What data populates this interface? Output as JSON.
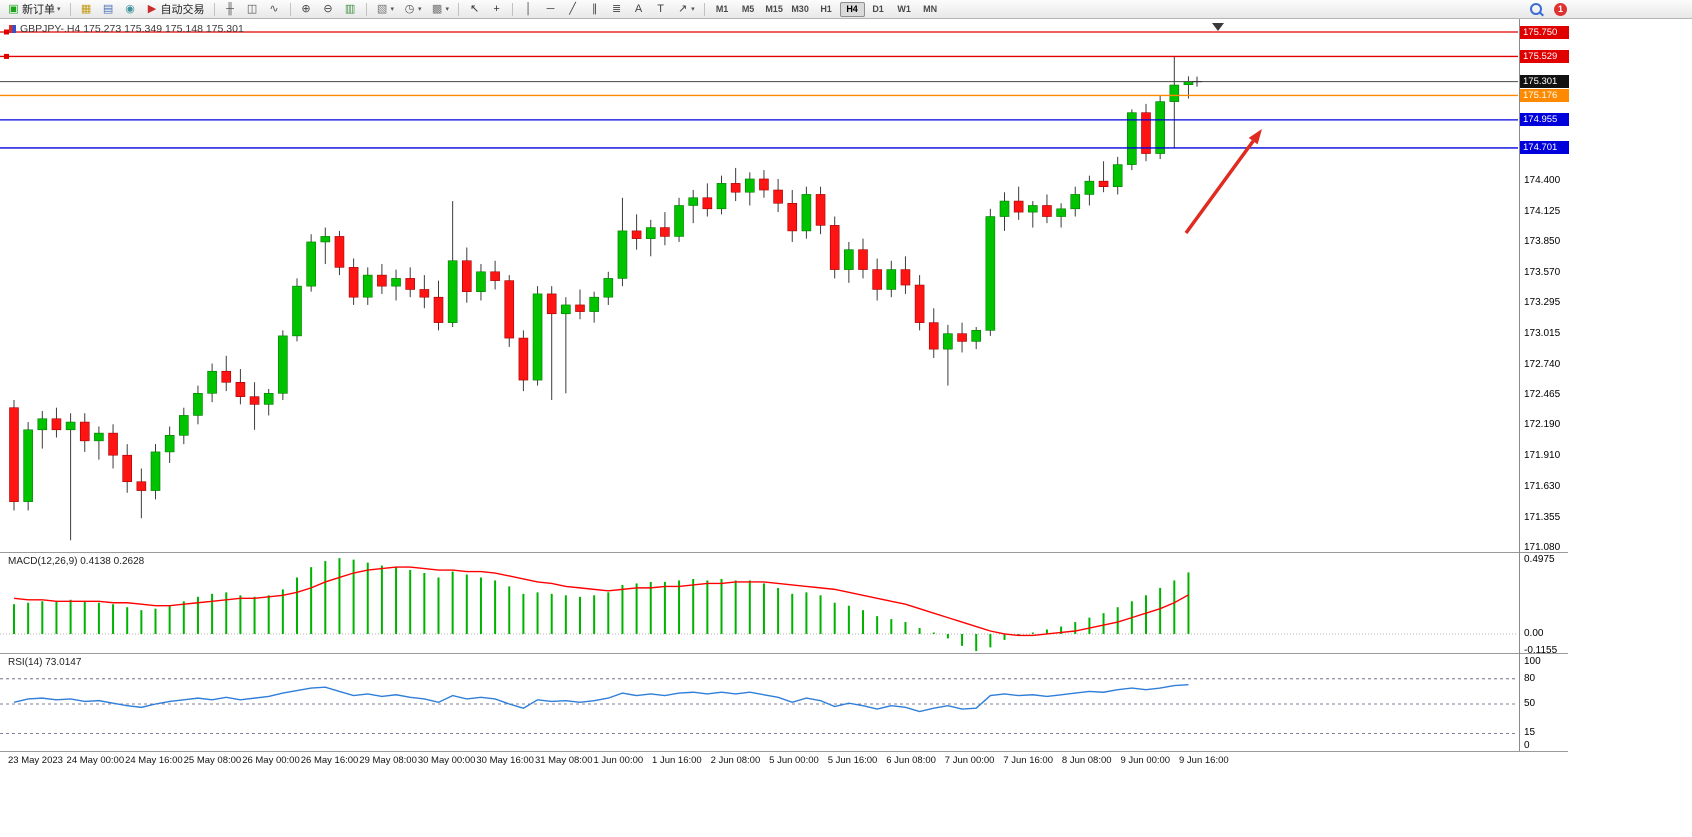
{
  "toolbar": {
    "new_order": "新订单",
    "autotrading": "自动交易",
    "timeframes": [
      "M1",
      "M5",
      "M15",
      "M30",
      "H1",
      "H4",
      "D1",
      "W1",
      "MN"
    ],
    "active_timeframe": "H4",
    "notification_count": "1"
  },
  "icons": {
    "new_order": "▣",
    "caret": "▾",
    "charts": "▦",
    "profiles": "▤",
    "navigator": "◉",
    "autotrading": "▶",
    "bars": "╫",
    "candles": "◫",
    "line_chart": "∿",
    "zoom_in": "⊕",
    "zoom_out": "⊖",
    "tile": "▥",
    "indicators": "▧",
    "periods": "◷",
    "templates": "▩",
    "cursor": "↖",
    "crosshair": "+",
    "vline": "│",
    "hline": "─",
    "trendline": "╱",
    "channel": "∥",
    "fibo": "≣",
    "text": "A",
    "label": "T",
    "arrows": "↗"
  },
  "main_chart": {
    "symbol_ohlc": "GBPJPY-.H4  175.273 175.349 175.148 175.301"
  },
  "macd_panel": {
    "label": "MACD(12,26,9) 0.4138 0.2628"
  },
  "rsi_panel": {
    "label": "RSI(14) 73.0147"
  },
  "chart_data": {
    "type": "candlestick",
    "symbol": "GBPJPY-",
    "timeframe": "H4",
    "price_range": [
      171.08,
      175.75
    ],
    "price_ticks": [
      "174.400",
      "174.125",
      "173.850",
      "173.570",
      "173.295",
      "173.015",
      "172.740",
      "172.465",
      "172.190",
      "171.910",
      "171.630",
      "171.355",
      "171.080"
    ],
    "hlines": [
      {
        "price": 175.75,
        "label": "175.750",
        "color": "#e00000",
        "kind": "hline"
      },
      {
        "price": 175.529,
        "label": "175.529",
        "color": "#e00000",
        "kind": "hline"
      },
      {
        "price": 175.301,
        "label": "175.301",
        "color": "#111111",
        "kind": "bid"
      },
      {
        "price": 175.176,
        "label": "175.176",
        "color": "#ff8a00",
        "kind": "hline"
      },
      {
        "price": 174.955,
        "label": "174.955",
        "color": "#0000dd",
        "kind": "hline"
      },
      {
        "price": 174.701,
        "label": "174.701",
        "color": "#0000dd",
        "kind": "hline"
      }
    ],
    "candles": [
      [
        172.35,
        172.42,
        171.42,
        171.5
      ],
      [
        171.5,
        172.22,
        171.42,
        172.15
      ],
      [
        172.15,
        172.32,
        171.98,
        172.25
      ],
      [
        172.25,
        172.35,
        172.08,
        172.15
      ],
      [
        172.15,
        172.3,
        171.15,
        172.22
      ],
      [
        172.22,
        172.3,
        171.95,
        172.05
      ],
      [
        172.05,
        172.18,
        171.88,
        172.12
      ],
      [
        172.12,
        172.2,
        171.8,
        171.92
      ],
      [
        171.92,
        172.02,
        171.58,
        171.68
      ],
      [
        171.68,
        171.8,
        171.35,
        171.6
      ],
      [
        171.6,
        172.02,
        171.52,
        171.95
      ],
      [
        171.95,
        172.18,
        171.85,
        172.1
      ],
      [
        172.1,
        172.35,
        172.02,
        172.28
      ],
      [
        172.28,
        172.55,
        172.2,
        172.48
      ],
      [
        172.48,
        172.75,
        172.4,
        172.68
      ],
      [
        172.68,
        172.82,
        172.5,
        172.58
      ],
      [
        172.58,
        172.7,
        172.38,
        172.45
      ],
      [
        172.45,
        172.58,
        172.15,
        172.38
      ],
      [
        172.38,
        172.52,
        172.28,
        172.48
      ],
      [
        172.48,
        173.05,
        172.42,
        173.0
      ],
      [
        173.0,
        173.52,
        172.95,
        173.45
      ],
      [
        173.45,
        173.92,
        173.4,
        173.85
      ],
      [
        173.85,
        173.98,
        173.65,
        173.9
      ],
      [
        173.9,
        173.95,
        173.55,
        173.62
      ],
      [
        173.62,
        173.7,
        173.28,
        173.35
      ],
      [
        173.35,
        173.62,
        173.28,
        173.55
      ],
      [
        173.55,
        173.65,
        173.38,
        173.45
      ],
      [
        173.45,
        173.6,
        173.32,
        173.52
      ],
      [
        173.52,
        173.62,
        173.35,
        173.42
      ],
      [
        173.42,
        173.55,
        173.25,
        173.35
      ],
      [
        173.35,
        173.5,
        173.05,
        173.12
      ],
      [
        173.12,
        174.22,
        173.08,
        173.68
      ],
      [
        173.68,
        173.8,
        173.3,
        173.4
      ],
      [
        173.4,
        173.65,
        173.32,
        173.58
      ],
      [
        173.58,
        173.68,
        173.42,
        173.5
      ],
      [
        173.5,
        173.55,
        172.9,
        172.98
      ],
      [
        172.98,
        173.05,
        172.5,
        172.6
      ],
      [
        172.6,
        173.45,
        172.55,
        173.38
      ],
      [
        173.38,
        173.45,
        172.42,
        173.2
      ],
      [
        173.2,
        173.35,
        172.48,
        173.28
      ],
      [
        173.28,
        173.42,
        173.15,
        173.22
      ],
      [
        173.22,
        173.4,
        173.12,
        173.35
      ],
      [
        173.35,
        173.58,
        173.28,
        173.52
      ],
      [
        173.52,
        174.25,
        173.45,
        173.95
      ],
      [
        173.95,
        174.1,
        173.78,
        173.88
      ],
      [
        173.88,
        174.05,
        173.72,
        173.98
      ],
      [
        173.98,
        174.12,
        173.82,
        173.9
      ],
      [
        173.9,
        174.25,
        173.85,
        174.18
      ],
      [
        174.18,
        174.32,
        174.02,
        174.25
      ],
      [
        174.25,
        174.38,
        174.08,
        174.15
      ],
      [
        174.15,
        174.45,
        174.1,
        174.38
      ],
      [
        174.38,
        174.52,
        174.22,
        174.3
      ],
      [
        174.3,
        174.48,
        174.18,
        174.42
      ],
      [
        174.42,
        174.5,
        174.25,
        174.32
      ],
      [
        174.32,
        174.42,
        174.12,
        174.2
      ],
      [
        174.2,
        174.32,
        173.85,
        173.95
      ],
      [
        173.95,
        174.35,
        173.88,
        174.28
      ],
      [
        174.28,
        174.35,
        173.92,
        174.0
      ],
      [
        174.0,
        174.08,
        173.52,
        173.6
      ],
      [
        173.6,
        173.85,
        173.48,
        173.78
      ],
      [
        173.78,
        173.88,
        173.52,
        173.6
      ],
      [
        173.6,
        173.7,
        173.32,
        173.42
      ],
      [
        173.42,
        173.68,
        173.35,
        173.6
      ],
      [
        173.6,
        173.72,
        173.38,
        173.46
      ],
      [
        173.46,
        173.55,
        173.05,
        173.12
      ],
      [
        173.12,
        173.25,
        172.8,
        172.88
      ],
      [
        172.88,
        173.1,
        172.55,
        173.02
      ],
      [
        173.02,
        173.12,
        172.85,
        172.95
      ],
      [
        172.95,
        173.08,
        172.88,
        173.05
      ],
      [
        173.05,
        174.15,
        173.0,
        174.08
      ],
      [
        174.08,
        174.3,
        173.95,
        174.22
      ],
      [
        174.22,
        174.35,
        174.05,
        174.12
      ],
      [
        174.12,
        174.22,
        173.98,
        174.18
      ],
      [
        174.18,
        174.28,
        174.02,
        174.08
      ],
      [
        174.08,
        174.2,
        173.98,
        174.15
      ],
      [
        174.15,
        174.35,
        174.08,
        174.28
      ],
      [
        174.28,
        174.45,
        174.18,
        174.4
      ],
      [
        174.4,
        174.58,
        174.3,
        174.35
      ],
      [
        174.35,
        174.62,
        174.28,
        174.55
      ],
      [
        174.55,
        175.05,
        174.5,
        175.02
      ],
      [
        175.02,
        175.1,
        174.58,
        174.65
      ],
      [
        174.65,
        175.18,
        174.6,
        175.12
      ],
      [
        175.12,
        175.529,
        174.7,
        175.27
      ],
      [
        175.273,
        175.349,
        175.148,
        175.301
      ]
    ],
    "macd": {
      "hist": [
        0.2,
        0.21,
        0.22,
        0.22,
        0.23,
        0.22,
        0.21,
        0.2,
        0.18,
        0.16,
        0.17,
        0.19,
        0.22,
        0.25,
        0.27,
        0.28,
        0.26,
        0.25,
        0.26,
        0.3,
        0.38,
        0.45,
        0.49,
        0.51,
        0.5,
        0.48,
        0.46,
        0.45,
        0.43,
        0.41,
        0.38,
        0.42,
        0.4,
        0.38,
        0.36,
        0.32,
        0.27,
        0.28,
        0.27,
        0.26,
        0.25,
        0.26,
        0.28,
        0.33,
        0.34,
        0.35,
        0.35,
        0.36,
        0.37,
        0.36,
        0.37,
        0.36,
        0.36,
        0.34,
        0.31,
        0.27,
        0.28,
        0.26,
        0.21,
        0.19,
        0.16,
        0.12,
        0.1,
        0.08,
        0.04,
        0.01,
        -0.03,
        -0.08,
        -0.115,
        -0.09,
        -0.04,
        -0.01,
        0.01,
        0.03,
        0.05,
        0.08,
        0.11,
        0.14,
        0.18,
        0.22,
        0.26,
        0.31,
        0.36,
        0.4138
      ],
      "signal": [
        0.24,
        0.23,
        0.23,
        0.22,
        0.22,
        0.22,
        0.22,
        0.21,
        0.21,
        0.2,
        0.19,
        0.19,
        0.2,
        0.21,
        0.22,
        0.23,
        0.24,
        0.24,
        0.25,
        0.26,
        0.28,
        0.31,
        0.35,
        0.38,
        0.41,
        0.43,
        0.44,
        0.45,
        0.45,
        0.44,
        0.43,
        0.43,
        0.42,
        0.42,
        0.41,
        0.39,
        0.37,
        0.35,
        0.34,
        0.32,
        0.31,
        0.3,
        0.29,
        0.3,
        0.31,
        0.31,
        0.32,
        0.32,
        0.33,
        0.34,
        0.34,
        0.35,
        0.35,
        0.35,
        0.34,
        0.33,
        0.32,
        0.31,
        0.3,
        0.28,
        0.26,
        0.24,
        0.22,
        0.2,
        0.17,
        0.14,
        0.11,
        0.08,
        0.05,
        0.02,
        0.0,
        -0.01,
        -0.01,
        0.0,
        0.01,
        0.02,
        0.04,
        0.06,
        0.08,
        0.11,
        0.14,
        0.17,
        0.21,
        0.2628
      ],
      "scale": [
        "0.4975",
        "0.00",
        "-0.1155"
      ],
      "range": [
        -0.1155,
        0.4975
      ]
    },
    "rsi": {
      "values": [
        52,
        56,
        57,
        55,
        56,
        53,
        54,
        51,
        48,
        46,
        50,
        53,
        55,
        57,
        55,
        58,
        55,
        57,
        59,
        63,
        66,
        69,
        70,
        65,
        60,
        62,
        59,
        61,
        58,
        56,
        52,
        60,
        56,
        58,
        56,
        50,
        45,
        55,
        53,
        54,
        52,
        54,
        57,
        63,
        60,
        62,
        60,
        63,
        64,
        62,
        64,
        62,
        64,
        61,
        58,
        52,
        57,
        54,
        47,
        51,
        48,
        44,
        48,
        46,
        41,
        45,
        48,
        44,
        45,
        60,
        62,
        60,
        61,
        59,
        61,
        63,
        65,
        64,
        67,
        69,
        67,
        69,
        72,
        73.01
      ],
      "levels": [
        80,
        50,
        15
      ],
      "scale": [
        "100",
        "80",
        "50",
        "15",
        "0"
      ],
      "range": [
        0,
        100
      ]
    },
    "time_labels": [
      "23 May 2023",
      "24 May 00:00",
      "24 May 16:00",
      "25 May 08:00",
      "26 May 00:00",
      "26 May 16:00",
      "29 May 08:00",
      "30 May 00:00",
      "30 May 16:00",
      "31 May 08:00",
      "1 Jun 00:00",
      "1 Jun 16:00",
      "2 Jun 08:00",
      "5 Jun 00:00",
      "5 Jun 16:00",
      "6 Jun 08:00",
      "7 Jun 00:00",
      "7 Jun 16:00",
      "8 Jun 08:00",
      "9 Jun 00:00",
      "9 Jun 16:00"
    ],
    "colors": {
      "up": "#00c300",
      "down": "#ff1414",
      "wick": "#3c3c3c",
      "up_border": "#007800",
      "down_border": "#a00000",
      "macd_hist": "#00b300",
      "macd_signal": "#ff0000",
      "rsi_line": "#2f7ed8",
      "arrow": "#e02b20"
    },
    "arrow": {
      "from": [
        1186,
        214
      ],
      "to": [
        1262,
        110
      ]
    }
  }
}
